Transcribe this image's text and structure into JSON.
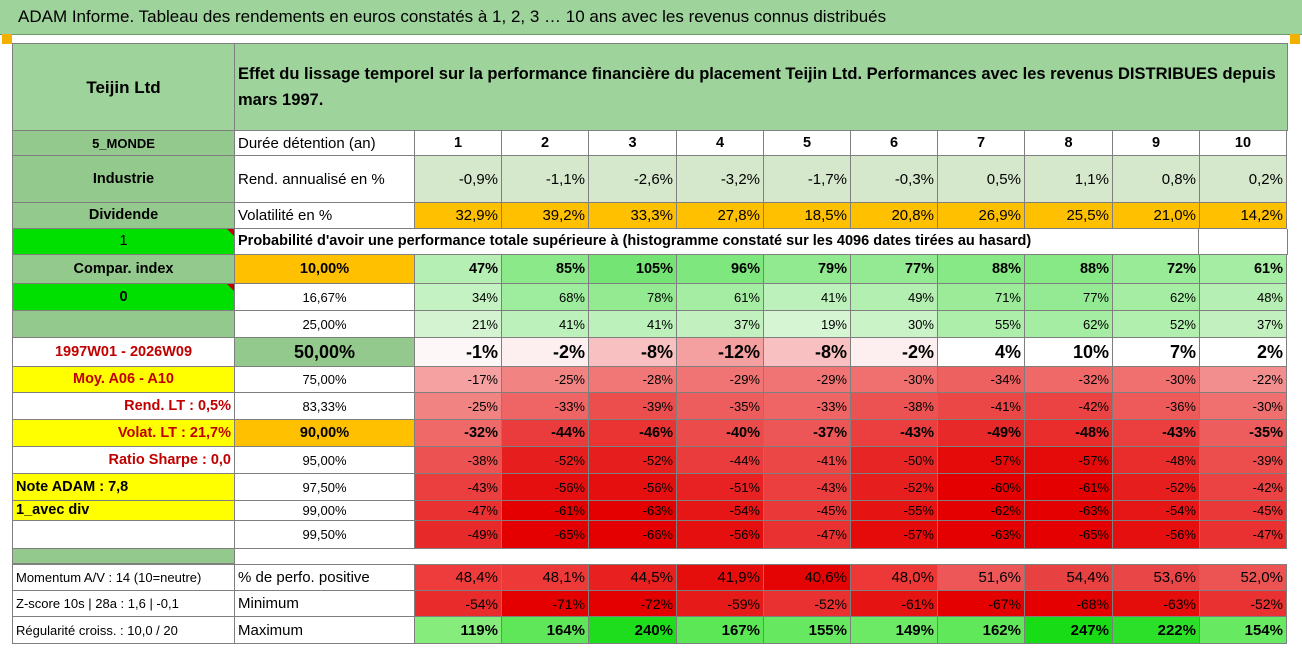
{
  "title": "ADAM Informe. Tableau des rendements en euros constatés à 1, 2, 3 … 10 ans avec les revenus connus distribués",
  "company": "Teijin Ltd",
  "description": "Effet du lissage temporel sur la performance financière du placement Teijin Ltd. Performances avec les revenus DISTRIBUES depuis mars 1997.",
  "left_labels": {
    "zone": "5_MONDE",
    "sector": "Industrie",
    "dividend": "Dividende",
    "flag1": "1",
    "compar": "Compar. index",
    "flag0": "0",
    "period": "1997W01 - 2026W09",
    "moy": "Moy. A06 - A10",
    "rend_lt": "Rend. LT :   0,5%",
    "volat_lt": "Volat. LT :   21,7%",
    "sharpe": "Ratio Sharpe :   0,0",
    "note": "Note ADAM : 7,8",
    "div": "1_avec div",
    "momentum": "Momentum A/V : 14 (10=neutre)",
    "zscore": "Z-score 10s | 28a : 1,6 | -0,1",
    "regularite": "Régularité croiss. : 10,0 / 20"
  },
  "row_labels": {
    "duree": "Durée détention (an)",
    "rend": "Rend. annualisé en %",
    "volat": "Volatilité en %",
    "proba": "Probabilité d'avoir une performance totale supérieure à (histogramme constaté sur les 4096 dates tirées au hasard)",
    "perfo_pos": "% de perfo. positive",
    "minimum": "Minimum",
    "maximum": "Maximum"
  },
  "years": [
    "1",
    "2",
    "3",
    "4",
    "5",
    "6",
    "7",
    "8",
    "9",
    "10"
  ],
  "rend_annualise": [
    "-0,9%",
    "-1,1%",
    "-2,6%",
    "-3,2%",
    "-1,7%",
    "-0,3%",
    "0,5%",
    "1,1%",
    "0,8%",
    "0,2%"
  ],
  "volatilite": [
    "32,9%",
    "39,2%",
    "33,3%",
    "27,8%",
    "18,5%",
    "20,8%",
    "26,9%",
    "25,5%",
    "21,0%",
    "14,2%"
  ],
  "thresholds": [
    "10,00%",
    "16,67%",
    "25,00%",
    "50,00%",
    "75,00%",
    "83,33%",
    "90,00%",
    "95,00%",
    "97,50%",
    "99,00%",
    "99,50%"
  ],
  "prob_rows": [
    [
      "47%",
      "85%",
      "105%",
      "96%",
      "79%",
      "77%",
      "88%",
      "88%",
      "72%",
      "61%"
    ],
    [
      "34%",
      "68%",
      "78%",
      "61%",
      "41%",
      "49%",
      "71%",
      "77%",
      "62%",
      "48%"
    ],
    [
      "21%",
      "41%",
      "41%",
      "37%",
      "19%",
      "30%",
      "55%",
      "62%",
      "52%",
      "37%"
    ],
    [
      "-1%",
      "-2%",
      "-8%",
      "-12%",
      "-8%",
      "-2%",
      "4%",
      "10%",
      "7%",
      "2%"
    ],
    [
      "-17%",
      "-25%",
      "-28%",
      "-29%",
      "-29%",
      "-30%",
      "-34%",
      "-32%",
      "-30%",
      "-22%"
    ],
    [
      "-25%",
      "-33%",
      "-39%",
      "-35%",
      "-33%",
      "-38%",
      "-41%",
      "-42%",
      "-36%",
      "-30%"
    ],
    [
      "-32%",
      "-44%",
      "-46%",
      "-40%",
      "-37%",
      "-43%",
      "-49%",
      "-48%",
      "-43%",
      "-35%"
    ],
    [
      "-38%",
      "-52%",
      "-52%",
      "-44%",
      "-41%",
      "-50%",
      "-57%",
      "-57%",
      "-48%",
      "-39%"
    ],
    [
      "-43%",
      "-56%",
      "-56%",
      "-51%",
      "-43%",
      "-52%",
      "-60%",
      "-61%",
      "-52%",
      "-42%"
    ],
    [
      "-47%",
      "-61%",
      "-63%",
      "-54%",
      "-45%",
      "-55%",
      "-62%",
      "-63%",
      "-54%",
      "-45%"
    ],
    [
      "-49%",
      "-65%",
      "-66%",
      "-56%",
      "-47%",
      "-57%",
      "-63%",
      "-65%",
      "-56%",
      "-47%"
    ]
  ],
  "perfo_positive": [
    "48,4%",
    "48,1%",
    "44,5%",
    "41,9%",
    "40,6%",
    "48,0%",
    "51,6%",
    "54,4%",
    "53,6%",
    "52,0%"
  ],
  "minimum": [
    "-54%",
    "-71%",
    "-72%",
    "-59%",
    "-52%",
    "-61%",
    "-67%",
    "-68%",
    "-63%",
    "-52%"
  ],
  "maximum": [
    "119%",
    "164%",
    "240%",
    "167%",
    "155%",
    "149%",
    "162%",
    "247%",
    "222%",
    "154%"
  ],
  "colors": {
    "header_green": "#9fd39c",
    "label_green": "#93c98c",
    "light_green": "#d8ecd0",
    "orange": "#ffc000",
    "yellow": "#ffff00",
    "bright_green": "#00e000",
    "red": "#e60000"
  }
}
